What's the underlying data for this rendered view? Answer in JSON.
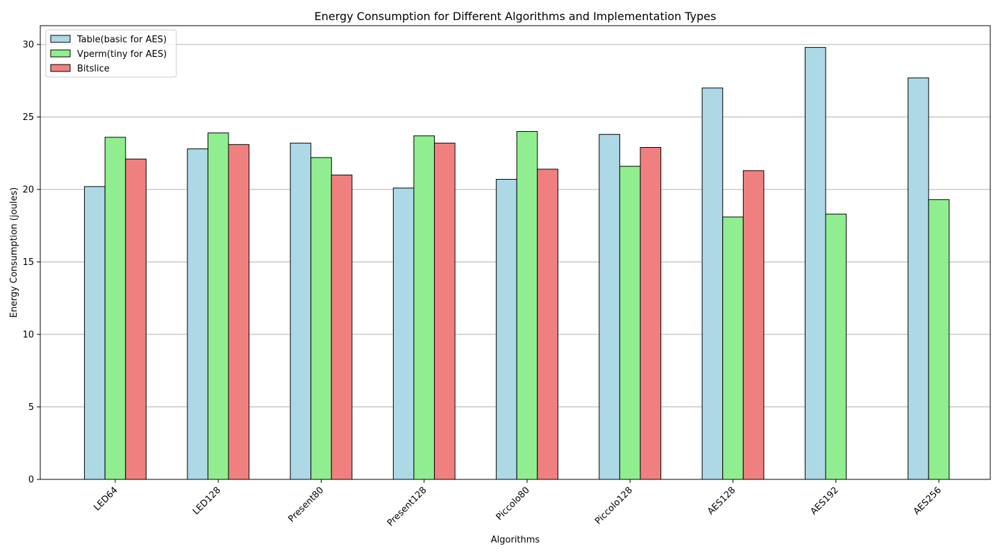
{
  "chart_data": {
    "type": "bar",
    "title": "Energy Consumption for Different Algorithms and Implementation Types",
    "xlabel": "Algorithms",
    "ylabel": "Energy Consumption (joules)",
    "categories": [
      "LED64",
      "LED128",
      "Present80",
      "Present128",
      "Piccolo80",
      "Piccolo128",
      "AES128",
      "AES192",
      "AES256"
    ],
    "series": [
      {
        "name": "Table(basic for AES)",
        "color": "#add8e6",
        "values": [
          20.2,
          22.8,
          23.2,
          20.1,
          20.7,
          23.8,
          27.0,
          29.8,
          27.7
        ]
      },
      {
        "name": "Vperm(tiny for AES)",
        "color": "#90ee90",
        "values": [
          23.6,
          23.9,
          22.2,
          23.7,
          24.0,
          21.6,
          18.1,
          18.3,
          19.3
        ]
      },
      {
        "name": "Bitslice",
        "color": "#f08080",
        "values": [
          22.1,
          23.1,
          21.0,
          23.2,
          21.4,
          22.9,
          21.3,
          null,
          null
        ]
      }
    ],
    "ylim": [
      0,
      31.3
    ],
    "yticks": [
      0,
      5,
      10,
      15,
      20,
      25,
      30
    ],
    "grid": "y",
    "legend": "top-left"
  }
}
